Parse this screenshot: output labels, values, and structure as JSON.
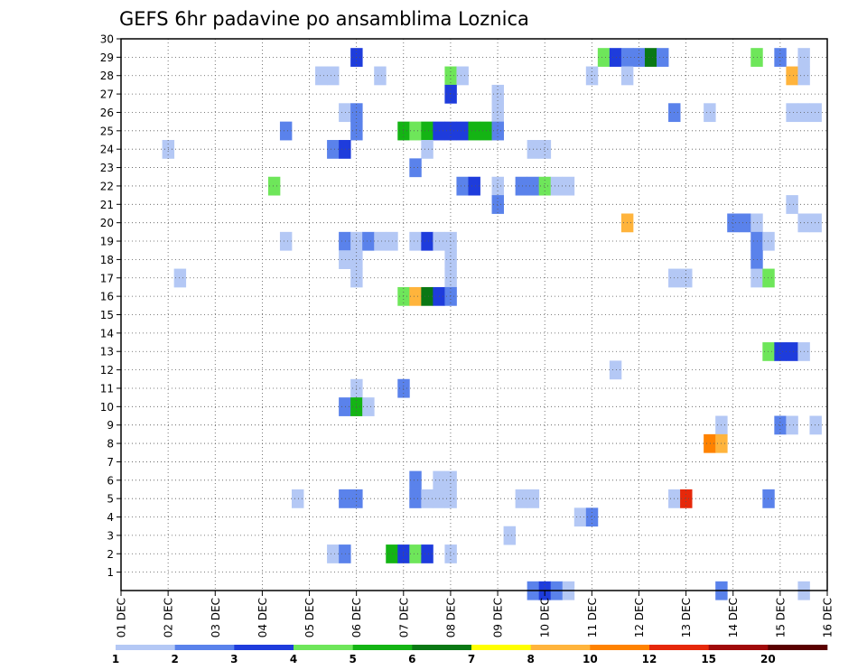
{
  "chart_data": {
    "type": "heatmap",
    "title": "GEFS 6hr padavine po ansamblima Loznica",
    "x_tick_labels": [
      "01 DEC",
      "02 DEC",
      "03 DEC",
      "04 DEC",
      "05 DEC",
      "06 DEC",
      "07 DEC",
      "08 DEC",
      "09 DEC",
      "10 DEC",
      "11 DEC",
      "12 DEC",
      "13 DEC",
      "14 DEC",
      "15 DEC",
      "16 DEC"
    ],
    "y_tick_labels": [
      "1",
      "2",
      "3",
      "4",
      "5",
      "6",
      "7",
      "8",
      "9",
      "10",
      "11",
      "12",
      "13",
      "14",
      "15",
      "16",
      "17",
      "18",
      "19",
      "20",
      "21",
      "22",
      "23",
      "24",
      "25",
      "26",
      "27",
      "28",
      "29",
      "30"
    ],
    "x_range_days": [
      1,
      16
    ],
    "y_range": [
      0,
      30
    ],
    "x_step_hours": 6,
    "grid": "dotted",
    "colorbar": {
      "labels": [
        "1",
        "2",
        "3",
        "4",
        "5",
        "6",
        "7",
        "8",
        "10",
        "12",
        "15",
        "20"
      ],
      "colors": [
        "#b4c8f5",
        "#5a82eb",
        "#1e3cdc",
        "#6ee65a",
        "#14b414",
        "#0a7814",
        "#ffff00",
        "#ffb43c",
        "#ff8200",
        "#e6280a",
        "#a00a0a",
        "#5a0000"
      ]
    },
    "cells": [
      [
        6.0,
        29,
        3
      ],
      [
        11.25,
        29,
        4
      ],
      [
        11.5,
        29,
        3
      ],
      [
        11.75,
        29,
        2
      ],
      [
        12.0,
        29,
        2
      ],
      [
        12.25,
        29,
        6
      ],
      [
        12.5,
        29,
        2
      ],
      [
        14.5,
        29,
        4
      ],
      [
        15.0,
        29,
        2
      ],
      [
        15.5,
        29,
        1
      ],
      [
        5.25,
        28,
        1
      ],
      [
        5.5,
        28,
        1
      ],
      [
        6.5,
        28,
        1
      ],
      [
        8.0,
        28,
        4
      ],
      [
        8.25,
        28,
        1
      ],
      [
        11.0,
        28,
        1
      ],
      [
        11.75,
        28,
        1
      ],
      [
        15.25,
        28,
        8
      ],
      [
        15.5,
        28,
        1
      ],
      [
        8.0,
        27,
        3
      ],
      [
        9.0,
        27,
        1
      ],
      [
        5.75,
        26,
        1
      ],
      [
        6.0,
        26,
        2
      ],
      [
        9.0,
        26,
        1
      ],
      [
        12.75,
        26,
        2
      ],
      [
        13.5,
        26,
        1
      ],
      [
        15.25,
        26,
        1
      ],
      [
        15.5,
        26,
        1
      ],
      [
        15.75,
        26,
        1
      ],
      [
        4.5,
        25,
        2
      ],
      [
        6.0,
        25,
        2
      ],
      [
        7.0,
        25,
        5
      ],
      [
        7.25,
        25,
        4
      ],
      [
        7.5,
        25,
        5
      ],
      [
        7.75,
        25,
        3
      ],
      [
        8.0,
        25,
        3
      ],
      [
        8.25,
        25,
        3
      ],
      [
        8.5,
        25,
        5
      ],
      [
        8.75,
        25,
        5
      ],
      [
        9.0,
        25,
        2
      ],
      [
        2.0,
        24,
        1
      ],
      [
        5.5,
        24,
        2
      ],
      [
        5.75,
        24,
        3
      ],
      [
        7.5,
        24,
        1
      ],
      [
        9.75,
        24,
        1
      ],
      [
        10.0,
        24,
        1
      ],
      [
        7.25,
        23,
        2
      ],
      [
        4.25,
        22,
        4
      ],
      [
        8.25,
        22,
        2
      ],
      [
        8.5,
        22,
        3
      ],
      [
        9.0,
        22,
        1
      ],
      [
        9.5,
        22,
        2
      ],
      [
        9.75,
        22,
        2
      ],
      [
        10.0,
        22,
        4
      ],
      [
        10.25,
        22,
        1
      ],
      [
        10.5,
        22,
        1
      ],
      [
        9.0,
        21,
        2
      ],
      [
        15.25,
        21,
        1
      ],
      [
        11.75,
        20,
        8
      ],
      [
        14.0,
        20,
        2
      ],
      [
        14.25,
        20,
        2
      ],
      [
        14.5,
        20,
        1
      ],
      [
        15.5,
        20,
        1
      ],
      [
        15.75,
        20,
        1
      ],
      [
        4.5,
        19,
        1
      ],
      [
        5.75,
        19,
        2
      ],
      [
        6.0,
        19,
        1
      ],
      [
        6.25,
        19,
        2
      ],
      [
        6.5,
        19,
        1
      ],
      [
        6.75,
        19,
        1
      ],
      [
        7.25,
        19,
        1
      ],
      [
        7.5,
        19,
        3
      ],
      [
        7.75,
        19,
        1
      ],
      [
        8.0,
        19,
        1
      ],
      [
        14.5,
        19,
        2
      ],
      [
        14.75,
        19,
        1
      ],
      [
        5.75,
        18,
        1
      ],
      [
        6.0,
        18,
        1
      ],
      [
        8.0,
        18,
        1
      ],
      [
        14.5,
        18,
        2
      ],
      [
        2.25,
        17,
        1
      ],
      [
        6.0,
        17,
        1
      ],
      [
        8.0,
        17,
        1
      ],
      [
        12.75,
        17,
        1
      ],
      [
        13.0,
        17,
        1
      ],
      [
        14.5,
        17,
        1
      ],
      [
        14.75,
        17,
        4
      ],
      [
        7.0,
        16,
        4
      ],
      [
        7.25,
        16,
        8
      ],
      [
        7.5,
        16,
        6
      ],
      [
        7.75,
        16,
        3
      ],
      [
        8.0,
        16,
        2
      ],
      [
        14.75,
        13,
        4
      ],
      [
        15.0,
        13,
        3
      ],
      [
        15.25,
        13,
        3
      ],
      [
        15.5,
        13,
        1
      ],
      [
        11.5,
        12,
        1
      ],
      [
        6.0,
        11,
        1
      ],
      [
        7.0,
        11,
        2
      ],
      [
        5.75,
        10,
        2
      ],
      [
        6.0,
        10,
        5
      ],
      [
        6.25,
        10,
        1
      ],
      [
        13.75,
        9,
        1
      ],
      [
        15.0,
        9,
        2
      ],
      [
        15.25,
        9,
        1
      ],
      [
        15.75,
        9,
        1
      ],
      [
        13.5,
        8,
        9
      ],
      [
        13.75,
        8,
        8
      ],
      [
        7.25,
        6,
        2
      ],
      [
        7.75,
        6,
        1
      ],
      [
        8.0,
        6,
        1
      ],
      [
        7.25,
        5,
        1
      ],
      [
        4.75,
        5,
        1
      ],
      [
        5.75,
        5,
        2
      ],
      [
        6.0,
        5,
        2
      ],
      [
        7.25,
        5,
        2
      ],
      [
        7.5,
        5,
        1
      ],
      [
        7.75,
        5,
        1
      ],
      [
        8.0,
        5,
        1
      ],
      [
        9.5,
        5,
        1
      ],
      [
        9.75,
        5,
        1
      ],
      [
        12.75,
        5,
        1
      ],
      [
        13.0,
        5,
        10
      ],
      [
        14.75,
        5,
        2
      ],
      [
        10.75,
        4,
        1
      ],
      [
        11.0,
        4,
        2
      ],
      [
        9.25,
        3,
        1
      ],
      [
        5.5,
        2,
        1
      ],
      [
        5.75,
        2,
        2
      ],
      [
        6.75,
        2,
        5
      ],
      [
        7.0,
        2,
        3
      ],
      [
        7.25,
        2,
        4
      ],
      [
        7.5,
        2,
        3
      ],
      [
        8.0,
        2,
        1
      ],
      [
        9.75,
        0,
        2
      ],
      [
        10.0,
        0,
        3
      ],
      [
        10.25,
        0,
        2
      ],
      [
        10.5,
        0,
        1
      ],
      [
        13.75,
        0,
        2
      ],
      [
        15.5,
        0,
        1
      ]
    ]
  }
}
